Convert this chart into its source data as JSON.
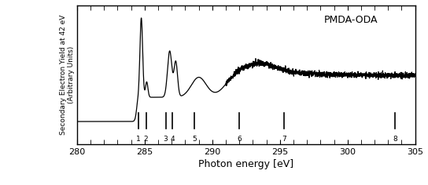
{
  "title": "PMDA-ODA",
  "xlabel": "Photon energy [eV]",
  "ylabel": "Secondary Electron Yield at 42 eV\n(Arbitrary Units)",
  "xlim": [
    280,
    305
  ],
  "xticks": [
    280,
    285,
    290,
    295,
    300,
    305
  ],
  "background_color": "#ffffff",
  "line_color": "#000000",
  "marker_positions": [
    284.55,
    285.1,
    286.55,
    287.05,
    288.7,
    292.0,
    295.3,
    303.5
  ],
  "marker_labels": [
    "1",
    "2",
    "3",
    "4",
    "5",
    "6",
    "7",
    "8"
  ]
}
